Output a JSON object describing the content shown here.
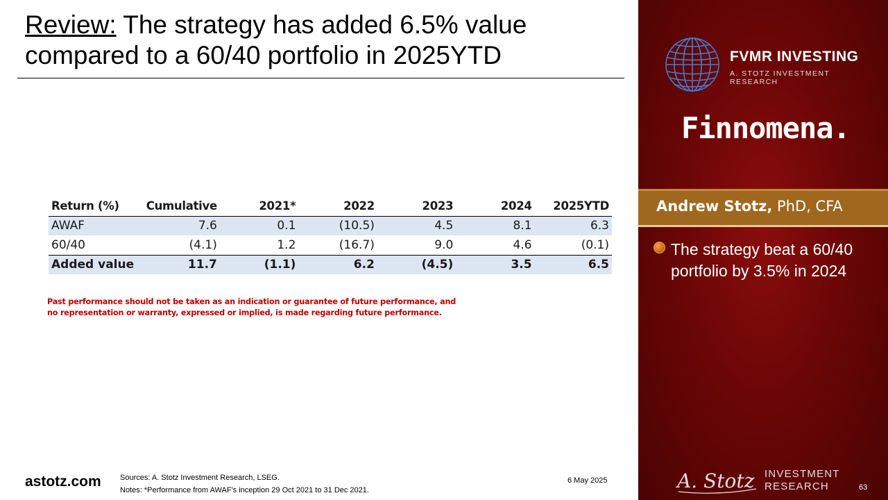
{
  "slide": {
    "title_prefix": "Review:",
    "title_rest": " The strategy has added 6.5% value compared to a 60/40 portfolio in 2025YTD"
  },
  "table": {
    "columns": [
      "Return (%)",
      "Cumulative",
      "2021*",
      "2022",
      "2023",
      "2024",
      "2025YTD"
    ],
    "rows": [
      {
        "label": "AWAF",
        "values": [
          "7.6",
          "0.1",
          "(10.5)",
          "4.5",
          "8.1",
          "6.3"
        ]
      },
      {
        "label": "60/40",
        "values": [
          "(4.1)",
          "1.2",
          "(16.7)",
          "9.0",
          "4.6",
          "(0.1)"
        ]
      },
      {
        "label": "Added value",
        "values": [
          "11.7",
          "(1.1)",
          "6.2",
          "(4.5)",
          "3.5",
          "6.5"
        ]
      }
    ]
  },
  "disclaimer": {
    "line1": "Past performance should not be taken as an indication or guarantee of future performance, and",
    "line2": "no representation or warranty, expressed or implied, is made regarding future performance."
  },
  "footer": {
    "site": "astotz.com",
    "sources": "Sources: A. Stotz Investment Research, LSEG.",
    "notes": "Notes: *Performance from AWAF's inception 29 Oct 2021 to 31 Dec 2021.",
    "date": "6 May 2025"
  },
  "sidebar": {
    "brand": "FVMR INVESTING",
    "brand_sub": "A. STOTZ INVESTMENT RESEARCH",
    "partner": "Finnomena.",
    "presenter_name": "Andrew Stotz,",
    "presenter_title": " PhD, CFA",
    "bullet": "The strategy beat a 60/40 portfolio by 3.5% in 2024",
    "ast_signature": "A. Stotz",
    "ast_line1": "INVESTMENT",
    "ast_line2": "RESEARCH",
    "page_number": "63"
  },
  "colors": {
    "panel_red": "#6b0606",
    "name_bar": "#a0671f",
    "disclaimer_red": "#c00000",
    "table_shade": "#dce6f2"
  }
}
